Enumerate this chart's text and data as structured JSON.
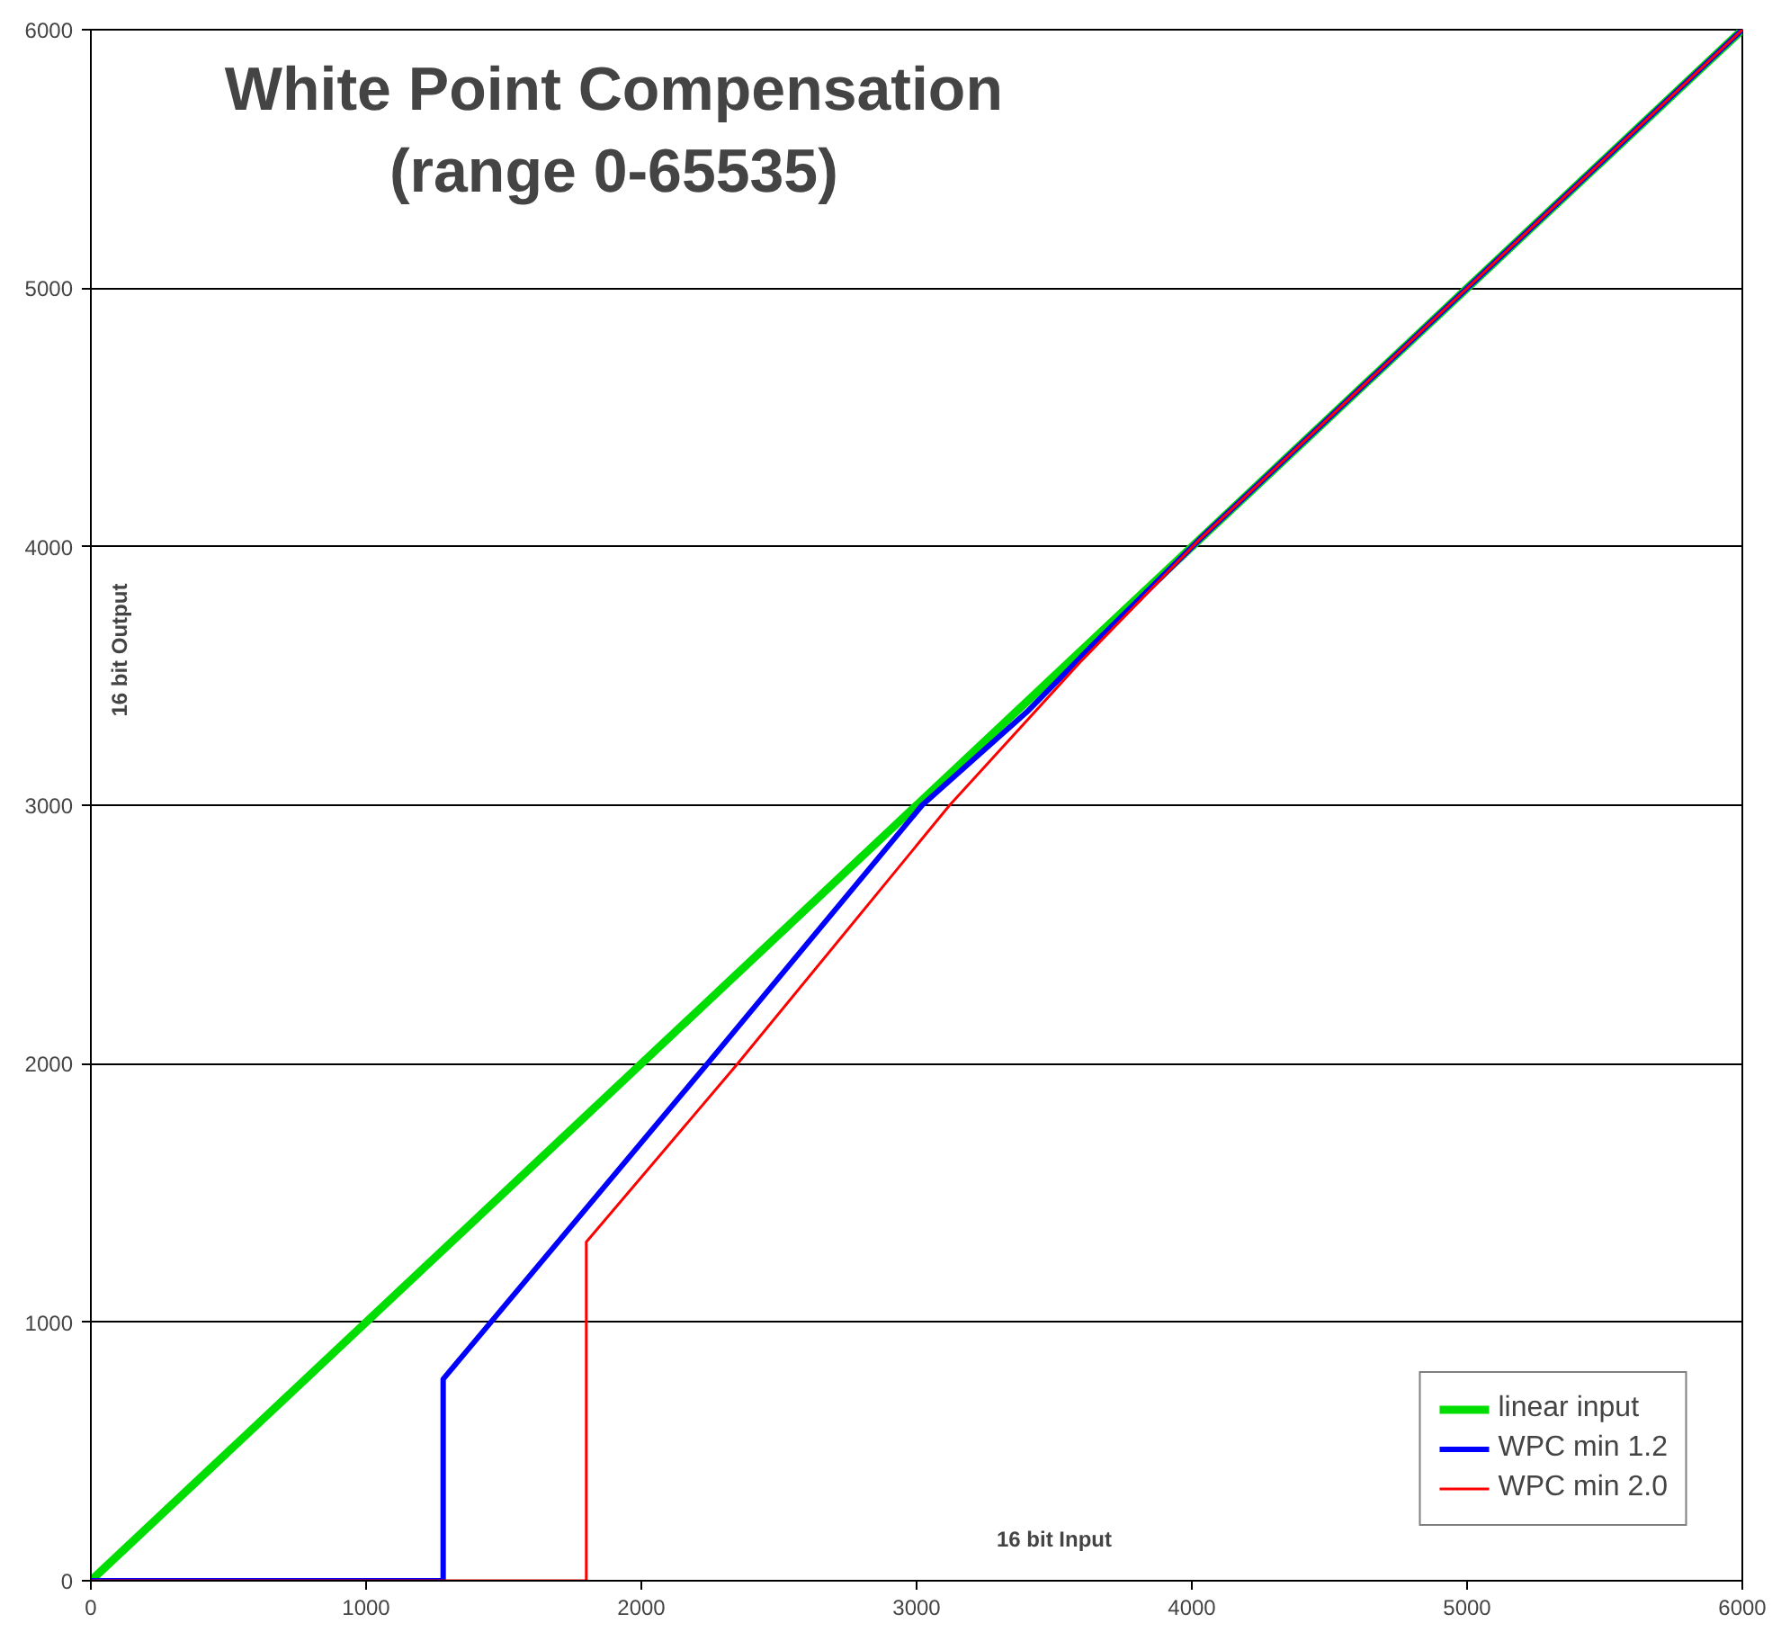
{
  "chart_data": {
    "type": "line",
    "title": "White Point Compensation\n(range 0-65535)",
    "xlabel": "16 bit Input",
    "ylabel": "16 bit Output",
    "xlim": [
      0,
      6000
    ],
    "ylim": [
      0,
      6000
    ],
    "xticks": [
      0,
      1000,
      2000,
      3000,
      4000,
      5000,
      6000
    ],
    "yticks": [
      0,
      1000,
      2000,
      3000,
      4000,
      5000,
      6000
    ],
    "grid": "y",
    "legend": "bottom right",
    "line_style": "solid",
    "series": [
      {
        "name": "linear input",
        "color": "#00dd00",
        "x": [
          0,
          6000
        ],
        "values": [
          0,
          6000
        ]
      },
      {
        "name": "WPC min 1.2",
        "color": "#0000ff",
        "x": [
          0,
          1280,
          1280,
          2240,
          3020,
          3400,
          3650,
          4030,
          6000
        ],
        "values": [
          0,
          0,
          780,
          2000,
          3000,
          3360,
          3630,
          4030,
          6000
        ]
      },
      {
        "name": "WPC min 2.0",
        "color": "#ff0000",
        "x": [
          0,
          1800,
          1800,
          2350,
          3120,
          3600,
          4030,
          6000
        ],
        "values": [
          0,
          0,
          1310,
          2000,
          3000,
          3560,
          4030,
          6000
        ]
      }
    ]
  }
}
